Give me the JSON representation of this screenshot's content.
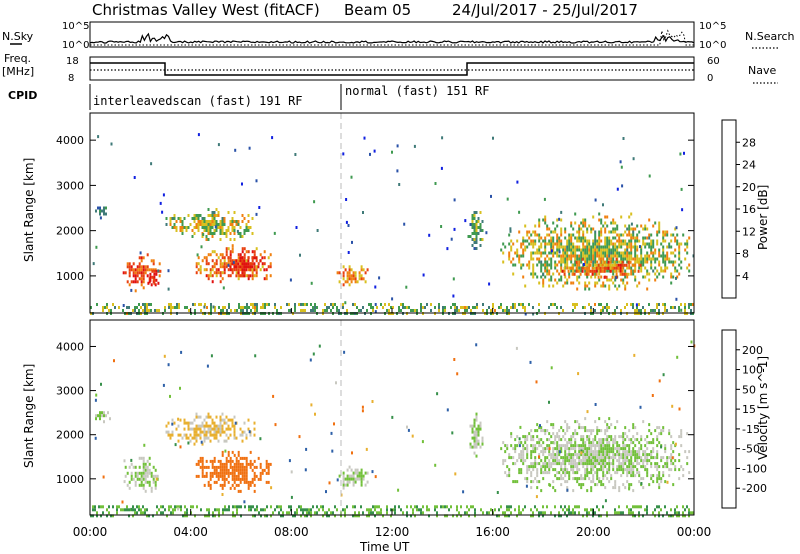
{
  "header": {
    "title": "Christmas Valley West (fitACF)",
    "beam": "Beam 05",
    "dates": "24/Jul/2017 - 25/Jul/2017"
  },
  "nsky_panel": {
    "left_label": "N.Sky",
    "left_ticks": [
      "10^5",
      "10^0"
    ],
    "right_label": "N.Search",
    "right_ticks": [
      "10^5",
      "10^0"
    ]
  },
  "freq_panel": {
    "left_label_1": "Freq.",
    "left_label_2": "[MHz]",
    "left_ticks": [
      "18",
      "8"
    ],
    "right_label": "Nave",
    "right_ticks": [
      "60",
      "0"
    ]
  },
  "cpid": {
    "label": "CPID",
    "segments": [
      "interleavedscan (fast) 191 RF",
      "normal (fast) 151 RF"
    ]
  },
  "colors": {
    "power_scale": [
      "#1020e0",
      "#2a52a8",
      "#3f7a78",
      "#3f9a50",
      "#d8c020",
      "#f08010",
      "#e84010",
      "#e01010"
    ],
    "velocity_scale": [
      "#1a2adc",
      "#2e60a8",
      "#36904a",
      "#72c03a",
      "#c8c8c0",
      "#e8b030",
      "#f07010",
      "#e84008",
      "#e01010"
    ]
  },
  "chart_data": [
    {
      "type": "heatmap",
      "panel": "power",
      "xlabel": "",
      "ylabel": "Slant Range [km]",
      "yticks": [
        "1000",
        "2000",
        "3000",
        "4000"
      ],
      "ylim": [
        180,
        4600
      ],
      "xlim_hours": [
        0,
        24
      ],
      "colorbar": {
        "label": "Power [dB]",
        "ticks": [
          "4",
          "8",
          "12",
          "16",
          "20",
          "24",
          "28"
        ],
        "range": [
          0,
          30
        ]
      },
      "echo_regions": [
        {
          "t": [
            1.3,
            2.8
          ],
          "r": [
            700,
            1500
          ],
          "value": 24
        },
        {
          "t": [
            2.2,
            2.8
          ],
          "r": [
            800,
            1200
          ],
          "value": 28
        },
        {
          "t": [
            0.2,
            0.8
          ],
          "r": [
            2300,
            2600
          ],
          "value": 10
        },
        {
          "t": [
            3.0,
            6.5
          ],
          "r": [
            1800,
            2500
          ],
          "value": 16
        },
        {
          "t": [
            4.2,
            7.2
          ],
          "r": [
            850,
            1700
          ],
          "value": 22
        },
        {
          "t": [
            5.3,
            6.9
          ],
          "r": [
            1000,
            1500
          ],
          "value": 28
        },
        {
          "t": [
            9.8,
            11.0
          ],
          "r": [
            800,
            1300
          ],
          "value": 20
        },
        {
          "t": [
            15.0,
            15.6
          ],
          "r": [
            1500,
            2500
          ],
          "value": 12
        },
        {
          "t": [
            16.3,
            23.8
          ],
          "r": [
            700,
            2400
          ],
          "value": 16
        },
        {
          "t": [
            18.5,
            22.0
          ],
          "r": [
            1000,
            1400
          ],
          "value": 22
        },
        {
          "t": [
            0,
            24
          ],
          "r": [
            180,
            400
          ],
          "value": 14
        }
      ]
    },
    {
      "type": "heatmap",
      "panel": "velocity",
      "xlabel": "Time UT",
      "ylabel": "Slant Range [km]",
      "xticks": [
        "00:00",
        "04:00",
        "08:00",
        "12:00",
        "16:00",
        "20:00",
        "00:00"
      ],
      "yticks": [
        "1000",
        "2000",
        "3000",
        "4000"
      ],
      "ylim": [
        180,
        4600
      ],
      "xlim_hours": [
        0,
        24
      ],
      "colorbar": {
        "label": "Velocity [m s^-1]",
        "ticks": [
          "200",
          "100",
          "50",
          "15",
          "-15",
          "-50",
          "-100",
          "-200"
        ],
        "range": [
          250,
          -250
        ]
      },
      "echo_regions": [
        {
          "t": [
            1.3,
            2.8
          ],
          "r": [
            700,
            1500
          ],
          "value": 0
        },
        {
          "t": [
            0.2,
            0.8
          ],
          "r": [
            2300,
            2600
          ],
          "value": 0
        },
        {
          "t": [
            3.0,
            6.5
          ],
          "r": [
            1800,
            2500
          ],
          "value": -40
        },
        {
          "t": [
            4.2,
            7.2
          ],
          "r": [
            700,
            1700
          ],
          "value": -120
        },
        {
          "t": [
            9.8,
            11.0
          ],
          "r": [
            800,
            1300
          ],
          "value": 0
        },
        {
          "t": [
            15.0,
            15.6
          ],
          "r": [
            1500,
            2500
          ],
          "value": 0
        },
        {
          "t": [
            16.3,
            23.8
          ],
          "r": [
            700,
            2400
          ],
          "value": 0
        },
        {
          "t": [
            0,
            24
          ],
          "r": [
            180,
            400
          ],
          "value": 30
        }
      ]
    }
  ]
}
